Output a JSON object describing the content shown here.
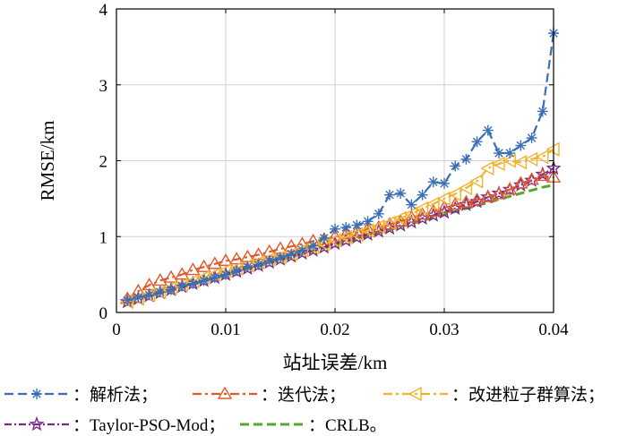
{
  "chart_data": {
    "type": "line",
    "title": "",
    "xlabel": "站址误差/km",
    "ylabel": "RMSE/km",
    "xlim": [
      0,
      0.04
    ],
    "ylim": [
      0,
      4
    ],
    "xticks": [
      0,
      0.01,
      0.02,
      0.03,
      0.04
    ],
    "xtick_labels": [
      "0",
      "0.01",
      "0.02",
      "0.03",
      "0.04"
    ],
    "yticks": [
      0,
      1,
      2,
      3,
      4
    ],
    "ytick_labels": [
      "0",
      "1",
      "2",
      "3",
      "4"
    ],
    "grid": true,
    "legend_placement": "bottom",
    "x": [
      0.001,
      0.002,
      0.003,
      0.004,
      0.005,
      0.006,
      0.007,
      0.008,
      0.009,
      0.01,
      0.011,
      0.012,
      0.013,
      0.014,
      0.015,
      0.016,
      0.017,
      0.018,
      0.019,
      0.02,
      0.021,
      0.022,
      0.023,
      0.024,
      0.025,
      0.026,
      0.027,
      0.028,
      0.029,
      0.03,
      0.031,
      0.032,
      0.033,
      0.034,
      0.035,
      0.036,
      0.037,
      0.038,
      0.039,
      0.04
    ],
    "series": [
      {
        "name": "解析法",
        "color": "#3a6fb5",
        "dash": "10 5",
        "marker": "asterisk",
        "values": [
          0.16,
          0.2,
          0.23,
          0.27,
          0.3,
          0.35,
          0.38,
          0.42,
          0.46,
          0.5,
          0.55,
          0.6,
          0.63,
          0.68,
          0.72,
          0.77,
          0.82,
          0.88,
          0.98,
          1.1,
          1.12,
          1.15,
          1.2,
          1.3,
          1.55,
          1.57,
          1.42,
          1.55,
          1.72,
          1.7,
          1.93,
          2.02,
          2.25,
          2.4,
          2.1,
          2.1,
          2.2,
          2.3,
          2.65,
          3.68
        ]
      },
      {
        "name": "迭代法",
        "color": "#e0592a",
        "dash": "10 4 3 4",
        "marker": "triangle",
        "values": [
          0.18,
          0.28,
          0.36,
          0.42,
          0.46,
          0.5,
          0.56,
          0.6,
          0.64,
          0.68,
          0.7,
          0.73,
          0.76,
          0.8,
          0.84,
          0.87,
          0.9,
          0.94,
          0.96,
          1.0,
          1.03,
          1.06,
          1.1,
          1.12,
          1.16,
          1.2,
          1.25,
          1.29,
          1.33,
          1.38,
          1.42,
          1.45,
          1.48,
          1.52,
          1.56,
          1.62,
          1.7,
          1.75,
          1.8,
          1.78
        ]
      },
      {
        "name": "改进粒子群算法",
        "color": "#f2b22b",
        "dash": "10 4 3 4",
        "marker": "left-triangle",
        "values": [
          0.14,
          0.18,
          0.23,
          0.27,
          0.32,
          0.36,
          0.41,
          0.46,
          0.5,
          0.55,
          0.58,
          0.62,
          0.66,
          0.7,
          0.73,
          0.77,
          0.82,
          0.86,
          0.9,
          0.95,
          0.99,
          1.03,
          1.08,
          1.13,
          1.18,
          1.24,
          1.3,
          1.37,
          1.43,
          1.5,
          1.56,
          1.64,
          1.73,
          1.9,
          1.96,
          2.0,
          1.98,
          2.02,
          2.05,
          2.15
        ]
      },
      {
        "name": "Taylor-PSO-Mod",
        "color": "#7b2a8a",
        "dash": "8 3 2 3",
        "marker": "star",
        "values": [
          0.14,
          0.18,
          0.22,
          0.26,
          0.3,
          0.34,
          0.38,
          0.42,
          0.46,
          0.5,
          0.54,
          0.58,
          0.62,
          0.66,
          0.7,
          0.74,
          0.78,
          0.82,
          0.86,
          0.91,
          0.95,
          0.99,
          1.03,
          1.07,
          1.11,
          1.15,
          1.19,
          1.24,
          1.28,
          1.32,
          1.37,
          1.42,
          1.46,
          1.52,
          1.57,
          1.62,
          1.68,
          1.74,
          1.82,
          1.9
        ]
      },
      {
        "name": "CRLB。",
        "color": "#5aa531",
        "dash": "10 5",
        "marker": "none",
        "values": [
          0.13,
          0.17,
          0.21,
          0.25,
          0.29,
          0.33,
          0.37,
          0.41,
          0.45,
          0.49,
          0.53,
          0.57,
          0.61,
          0.65,
          0.69,
          0.73,
          0.77,
          0.81,
          0.85,
          0.89,
          0.93,
          0.97,
          1.01,
          1.05,
          1.09,
          1.13,
          1.17,
          1.21,
          1.25,
          1.29,
          1.33,
          1.37,
          1.41,
          1.45,
          1.49,
          1.53,
          1.57,
          1.61,
          1.65,
          1.68
        ]
      }
    ],
    "legend": [
      {
        "series": 0,
        "label": "：解析法；"
      },
      {
        "series": 1,
        "label": "：迭代法；"
      },
      {
        "series": 2,
        "label": "：改进粒子群算法；"
      },
      {
        "series": 3,
        "label": "：Taylor-PSO-Mod；"
      },
      {
        "series": 4,
        "label": "：CRLB。"
      }
    ]
  }
}
